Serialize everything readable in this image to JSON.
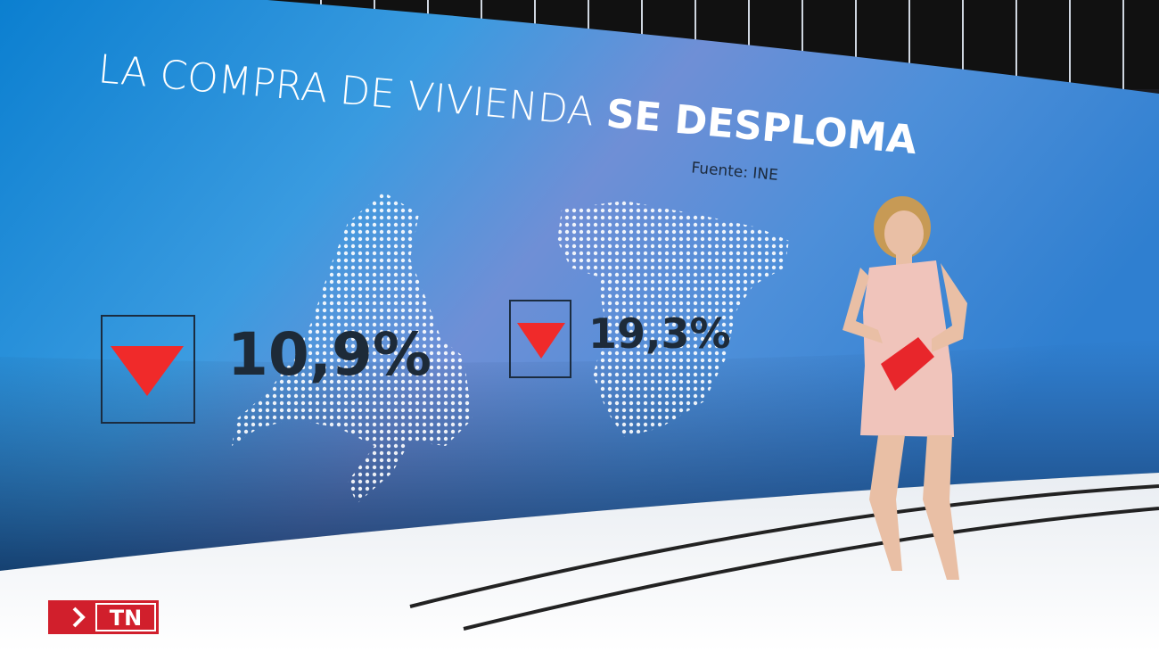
{
  "header": {
    "title": "LA COMPRA DE VIVIENDA",
    "title_emphasis": "SE DESPLOMA",
    "source": "Fuente: INE"
  },
  "stats": [
    {
      "value": "10,9%"
    },
    {
      "value": "19,3%"
    }
  ],
  "logo": {
    "text": "TN"
  }
}
